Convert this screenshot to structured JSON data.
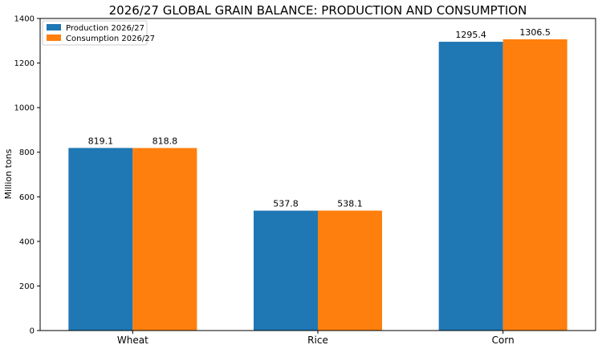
{
  "chart_data": {
    "type": "bar",
    "title": "2026/27 GLOBAL GRAIN BALANCE: PRODUCTION AND CONSUMPTION",
    "xlabel": "",
    "ylabel": "Million tons",
    "categories": [
      "Wheat",
      "Rice",
      "Corn"
    ],
    "series": [
      {
        "name": "Production 2026/27",
        "color": "#1f77b4",
        "values": [
          819.1,
          537.8,
          1295.4
        ]
      },
      {
        "name": "Consumption 2026/27",
        "color": "#ff7f0e",
        "values": [
          818.8,
          538.1,
          1306.5
        ]
      }
    ],
    "ylim": [
      0,
      1400
    ],
    "yticks": [
      0,
      200,
      400,
      600,
      800,
      1000,
      1200,
      1400
    ],
    "legend_position": "top-left",
    "grid": false
  }
}
